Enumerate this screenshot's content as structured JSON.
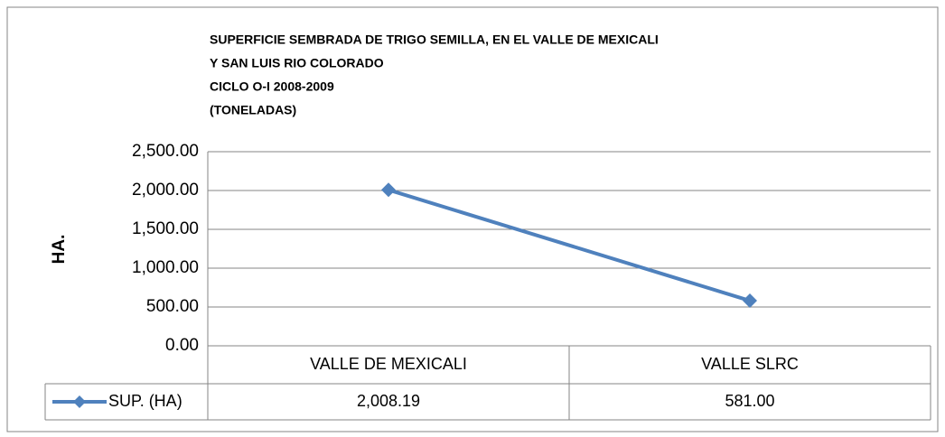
{
  "chart_data": {
    "type": "line",
    "title": [
      "SUPERFICIE SEMBRADA DE TRIGO SEMILLA, EN EL VALLE DE MEXICALI",
      "Y SAN LUIS RIO COLORADO",
      "CICLO O-I 2008-2009",
      "(TONELADAS)"
    ],
    "y_label": "HA.",
    "categories": [
      "VALLE DE MEXICALI",
      "VALLE SLRC"
    ],
    "series": [
      {
        "name": "SUP. (HA)",
        "color": "#4f81bd",
        "values": [
          2008.19,
          581.0
        ],
        "value_labels": [
          "2,008.19",
          "581.00"
        ]
      }
    ],
    "ylim": [
      0,
      2500
    ],
    "yticks": [
      {
        "value": 0,
        "label": "0.00"
      },
      {
        "value": 500,
        "label": "500.00"
      },
      {
        "value": 1000,
        "label": "1,000.00"
      },
      {
        "value": 1500,
        "label": "1,500.00"
      },
      {
        "value": 2000,
        "label": "2,000.00"
      },
      {
        "value": 2500,
        "label": "2,500.00"
      }
    ],
    "grid": true
  }
}
